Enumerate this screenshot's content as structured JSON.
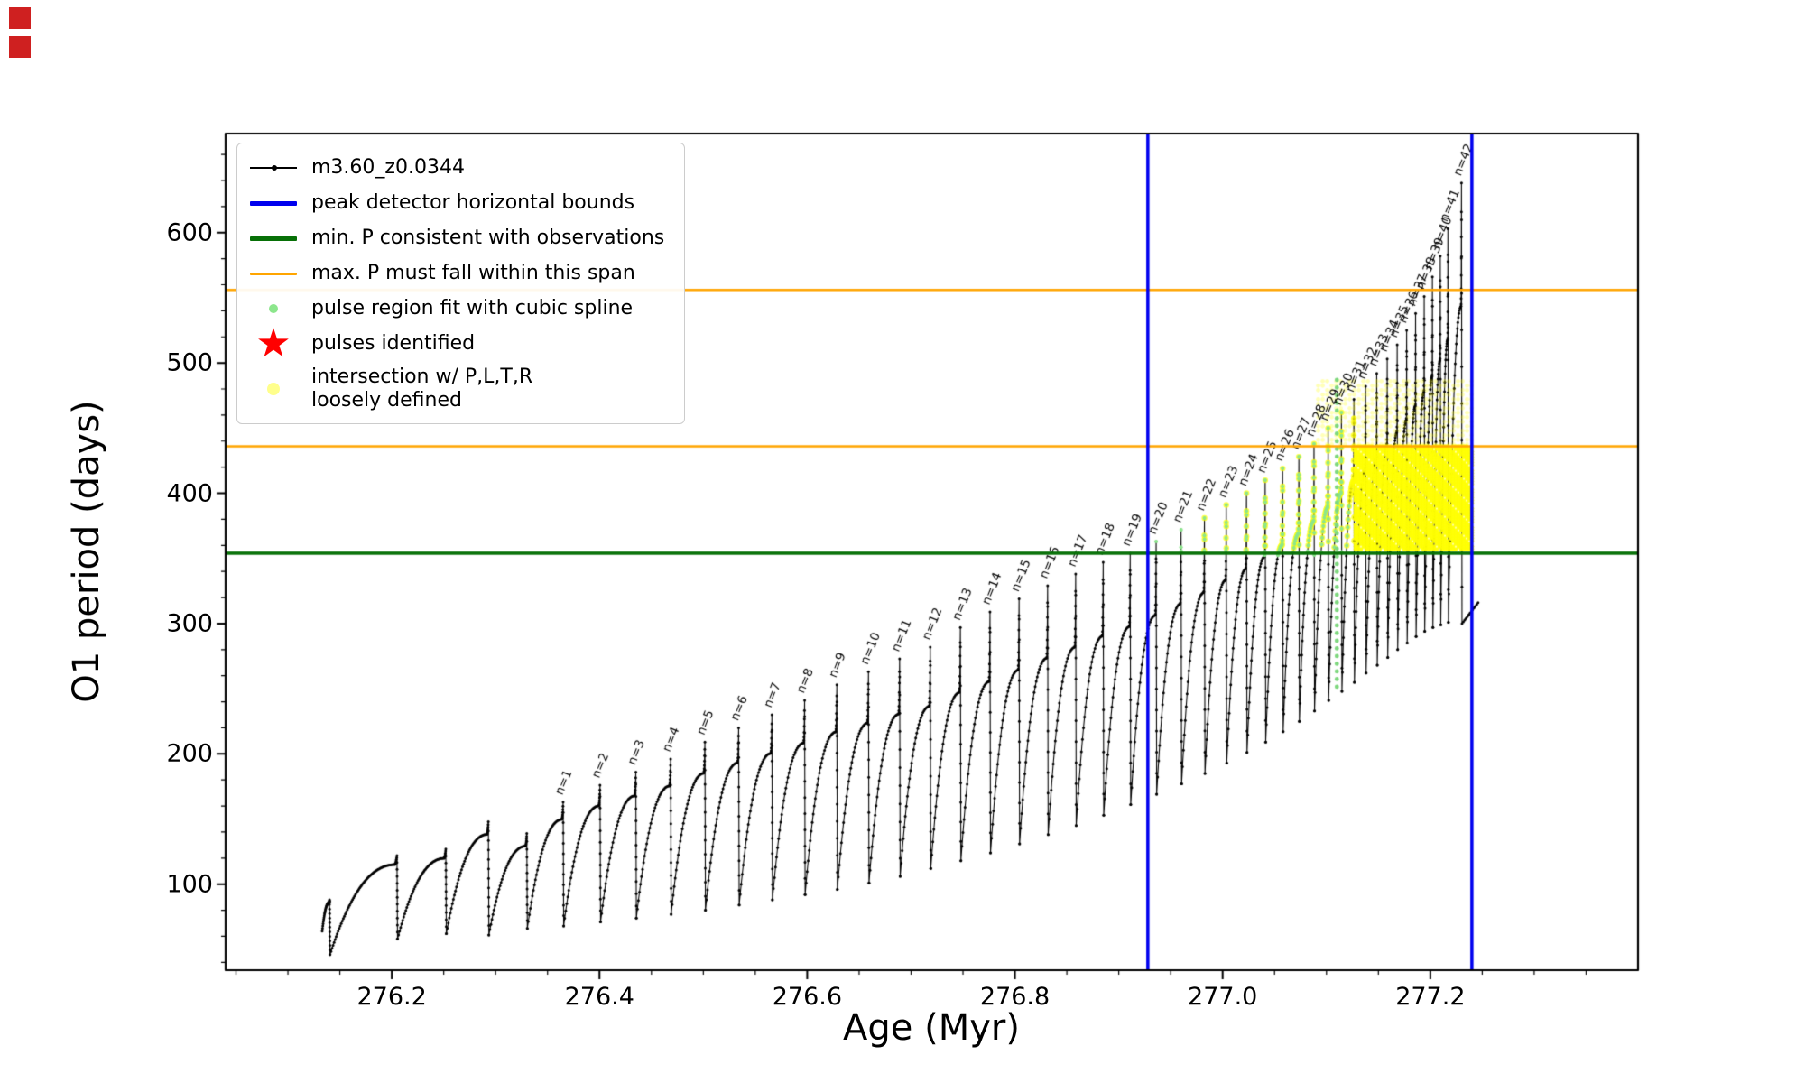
{
  "decorations": {
    "corner_marker_color": "#cf2020"
  },
  "chart_data": {
    "type": "line",
    "title": "",
    "xlabel": "Age (Myr)",
    "ylabel": "O1 period (days)",
    "xlim": [
      276.04,
      277.4
    ],
    "ylim": [
      34,
      676
    ],
    "grid": false,
    "legend_position": "upper left",
    "x_minor_step": 0.05,
    "y_minor_step": 20,
    "xticks": [
      {
        "value": 276.2,
        "label": "276.2"
      },
      {
        "value": 276.4,
        "label": "276.4"
      },
      {
        "value": 276.6,
        "label": "276.6"
      },
      {
        "value": 276.8,
        "label": "276.8"
      },
      {
        "value": 277.0,
        "label": "277.0"
      },
      {
        "value": 277.2,
        "label": "277.2"
      }
    ],
    "yticks": [
      {
        "value": 100,
        "label": "100"
      },
      {
        "value": 200,
        "label": "200"
      },
      {
        "value": 300,
        "label": "300"
      },
      {
        "value": 400,
        "label": "400"
      },
      {
        "value": 500,
        "label": "500"
      },
      {
        "value": 600,
        "label": "600"
      }
    ],
    "series_label": "m3.60_z0.0344",
    "series_color": "#000000",
    "curve_start": {
      "age": 276.133,
      "period": 64
    },
    "curve_end": {
      "age": 277.246,
      "period": 316
    },
    "pulses": [
      {
        "age": 276.14,
        "peak": 88,
        "min_after": 46
      },
      {
        "age": 276.205,
        "peak": 122,
        "min_after": 58
      },
      {
        "age": 276.252,
        "peak": 127,
        "min_after": 62
      },
      {
        "age": 276.293,
        "peak": 148,
        "min_after": 61
      },
      {
        "age": 276.33,
        "peak": 139,
        "min_after": 66
      },
      {
        "label": "n=1",
        "age": 276.365,
        "peak": 163,
        "min_after": 68
      },
      {
        "label": "n=2",
        "age": 276.4005,
        "peak": 176,
        "min_after": 71
      },
      {
        "label": "n=3",
        "age": 276.435,
        "peak": 186,
        "min_after": 74
      },
      {
        "label": "n=4",
        "age": 276.4685,
        "peak": 196,
        "min_after": 77
      },
      {
        "label": "n=5",
        "age": 276.5015,
        "peak": 209,
        "min_after": 80
      },
      {
        "label": "n=6",
        "age": 276.534,
        "peak": 220,
        "min_after": 84
      },
      {
        "label": "n=7",
        "age": 276.566,
        "peak": 230,
        "min_after": 88
      },
      {
        "label": "n=8",
        "age": 276.5975,
        "peak": 241,
        "min_after": 92
      },
      {
        "label": "n=9",
        "age": 276.6285,
        "peak": 253,
        "min_after": 96
      },
      {
        "label": "n=10",
        "age": 276.659,
        "peak": 263,
        "min_after": 101
      },
      {
        "label": "n=11",
        "age": 276.689,
        "peak": 273,
        "min_after": 106
      },
      {
        "label": "n=12",
        "age": 276.7185,
        "peak": 282,
        "min_after": 112
      },
      {
        "label": "n=13",
        "age": 276.7475,
        "peak": 297,
        "min_after": 118
      },
      {
        "label": "n=14",
        "age": 276.776,
        "peak": 309,
        "min_after": 124
      },
      {
        "label": "n=15",
        "age": 276.804,
        "peak": 319,
        "min_after": 131
      },
      {
        "label": "n=16",
        "age": 276.8315,
        "peak": 329,
        "min_after": 138
      },
      {
        "label": "n=17",
        "age": 276.8585,
        "peak": 338,
        "min_after": 145
      },
      {
        "label": "n=18",
        "age": 276.885,
        "peak": 347,
        "min_after": 153
      },
      {
        "label": "n=19",
        "age": 276.911,
        "peak": 354,
        "min_after": 161
      },
      {
        "label": "n=20",
        "age": 276.936,
        "peak": 363,
        "min_after": 169
      },
      {
        "label": "n=21",
        "age": 276.96,
        "peak": 372,
        "min_after": 177
      },
      {
        "label": "n=22",
        "age": 276.9825,
        "peak": 381,
        "min_after": 185
      },
      {
        "label": "n=23",
        "age": 277.0035,
        "peak": 391,
        "min_after": 193
      },
      {
        "label": "n=24",
        "age": 277.023,
        "peak": 400,
        "min_after": 201
      },
      {
        "label": "n=25",
        "age": 277.041,
        "peak": 410,
        "min_after": 209
      },
      {
        "label": "n=26",
        "age": 277.0578,
        "peak": 419,
        "min_after": 217
      },
      {
        "label": "n=27",
        "age": 277.0734,
        "peak": 428,
        "min_after": 225
      },
      {
        "label": "n=28",
        "age": 277.088,
        "peak": 438,
        "min_after": 233
      },
      {
        "label": "n=29",
        "age": 277.1016,
        "peak": 450,
        "min_after": 241
      },
      {
        "label": "n=30",
        "age": 277.1144,
        "peak": 462,
        "min_after": 248
      },
      {
        "label": "n=31",
        "age": 277.1264,
        "peak": 472,
        "min_after": 255
      },
      {
        "label": "n=32",
        "age": 277.1377,
        "peak": 482,
        "min_after": 262
      },
      {
        "label": "n=33",
        "age": 277.1484,
        "peak": 492,
        "min_after": 268
      },
      {
        "label": "n=34",
        "age": 277.1585,
        "peak": 503,
        "min_after": 274
      },
      {
        "label": "n=35",
        "age": 277.1681,
        "peak": 514,
        "min_after": 280
      },
      {
        "label": "n=36",
        "age": 277.1772,
        "peak": 525,
        "min_after": 285
      },
      {
        "label": "n=37",
        "age": 277.1858,
        "peak": 538,
        "min_after": 290
      },
      {
        "label": "n=38",
        "age": 277.1941,
        "peak": 551,
        "min_after": 294
      },
      {
        "label": "n=39",
        "age": 277.202,
        "peak": 566,
        "min_after": 297
      },
      {
        "label": "n=40",
        "age": 277.2096,
        "peak": 582,
        "min_after": 299
      },
      {
        "label": "n=41",
        "age": 277.2169,
        "peak": 603,
        "min_after": 301
      },
      {
        "label": "n=42",
        "age": 277.23,
        "peak": 638,
        "min_after": 300
      }
    ],
    "hlines": [
      {
        "name": "min-P-consistent-with-observations",
        "value": 354,
        "color": "#077007",
        "width": 3.5
      },
      {
        "name": "max-P-span-lower",
        "value": 436,
        "color": "#FFA500",
        "width": 2.5
      },
      {
        "name": "max-P-span-upper",
        "value": 556,
        "color": "#FFA500",
        "width": 2.5
      }
    ],
    "vlines": [
      {
        "name": "peak-detector-left-bound",
        "value": 276.928,
        "color": "#0000EE",
        "width": 3.5
      },
      {
        "name": "peak-detector-right-bound",
        "value": 277.24,
        "color": "#0000EE",
        "width": 3.5
      }
    ],
    "spline_vline": {
      "x": 277.11,
      "y_from": 248,
      "y_to": 487,
      "color": "#7FD87F"
    },
    "spline_on_curve": {
      "age_from": 276.925,
      "age_to": 277.122,
      "y_from": 352,
      "y_to": 470,
      "color": "#8CE68C"
    },
    "yellow_region": {
      "color": "#FFFF00",
      "on_curve": {
        "age_from": 276.962,
        "age_to": 277.128,
        "y_from": 356,
        "y_to": 466
      },
      "solid": {
        "age_from": 277.128,
        "age_to": 277.242,
        "y_from": 357,
        "y_to": 436
      },
      "haze": {
        "age_from": 277.092,
        "age_to": 277.242,
        "y_from": 437,
        "y_to": 486
      }
    },
    "legend": [
      {
        "swatch": "line-dot",
        "color": "#000000",
        "label": "m3.60_z0.0344"
      },
      {
        "swatch": "line",
        "weight": 5,
        "color": "#0000EE",
        "label": "peak detector horizontal bounds"
      },
      {
        "swatch": "line",
        "weight": 5,
        "color": "#077007",
        "label": "min. P consistent with observations"
      },
      {
        "swatch": "line",
        "weight": 3,
        "color": "#FFA500",
        "label": "max. P must fall within this span"
      },
      {
        "swatch": "dot",
        "color": "#8CE68C",
        "label": "pulse region fit with cubic spline"
      },
      {
        "swatch": "star",
        "color": "#FF0000",
        "label": "pulses identified"
      },
      {
        "swatch": "dot-pale",
        "color": "#FFFF00",
        "label": "intersection w/ P,L,T,R",
        "label2": "loosely defined"
      }
    ]
  }
}
